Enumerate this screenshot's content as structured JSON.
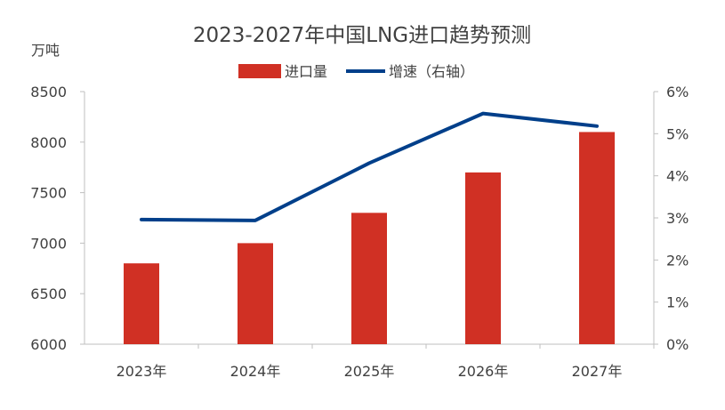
{
  "chart_data": {
    "type": "bar",
    "title": "2023-2027年中国LNG进口趋势预测",
    "ylabel": "万吨",
    "categories": [
      "2023年",
      "2024年",
      "2025年",
      "2026年",
      "2027年"
    ],
    "series": [
      {
        "name": "进口量",
        "type": "bar",
        "axis": "left",
        "color": "#D03024",
        "values": [
          6800,
          7000,
          7300,
          7700,
          8100
        ]
      },
      {
        "name": "增速（右轴）",
        "type": "line",
        "axis": "right",
        "color": "#003F8A",
        "values": [
          2.96,
          2.94,
          4.3,
          5.48,
          5.18
        ]
      }
    ],
    "ylim": [
      6000,
      8500
    ],
    "yticks": [
      "6000",
      "6500",
      "7000",
      "7500",
      "8000",
      "8500"
    ],
    "y2lim": [
      0,
      6
    ],
    "y2ticks": [
      "0%",
      "1%",
      "2%",
      "3%",
      "4%",
      "5%",
      "6%"
    ],
    "legend": "top-center",
    "grid": false
  }
}
